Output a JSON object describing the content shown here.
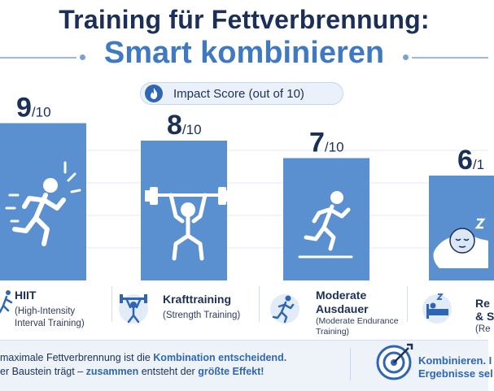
{
  "header": {
    "title_line1": "Training für Fettverbrennung:",
    "title_line2": "Smart kombinieren",
    "score_label": "Impact Score (out of 10)"
  },
  "colors": {
    "bar": "#5a8fd0",
    "bar_top": "#6b9bd8",
    "title_dark": "#1b2f57",
    "accent": "#3f79c2"
  },
  "icons": {
    "pill": "flame-icon",
    "bars": [
      "sprinter-icon",
      "weightlifter-icon",
      "runner-icon",
      "sleeping-person-icon"
    ],
    "labels": [
      "sprinter-icon",
      "barbell-icon",
      "runner-icon",
      "bed-icon"
    ],
    "footer": "target-icon"
  },
  "chart_data": {
    "type": "bar",
    "categories": [
      "HIIT",
      "Krafttraining",
      "Moderate Ausdauer",
      "Re"
    ],
    "values": [
      9,
      8,
      7,
      6
    ],
    "ylim": [
      0,
      10
    ],
    "value_suffix": "/10",
    "value_suffix_cut": "/1",
    "category_labels": [
      {
        "name": "HIIT",
        "sub_line1": "(High-Intensity",
        "sub_line2": "Interval Training)"
      },
      {
        "name": "Krafttraining",
        "sub_line1": "(Strength Training)",
        "sub_line2": ""
      },
      {
        "name_line1": "Moderate",
        "name_line2": "Ausdauer",
        "sub_line1": "(Moderate Endurance",
        "sub_line2": "Training)"
      },
      {
        "name_line1": "Re",
        "name_line2": "& S",
        "sub_line1": "(Re",
        "sub_line2": ""
      }
    ],
    "grid": true
  },
  "footer": {
    "line1_a": "maximale Fettverbrennung ist die ",
    "line1_b": "Kombination entscheidend.",
    "line2_a": "er Baustein trägt – ",
    "line2_b": "zusammen",
    "line2_c": " entsteht der ",
    "line2_d": "größte Effekt!",
    "right_line1": "Kombinieren. I",
    "right_line2": "Ergebnisse sel"
  }
}
